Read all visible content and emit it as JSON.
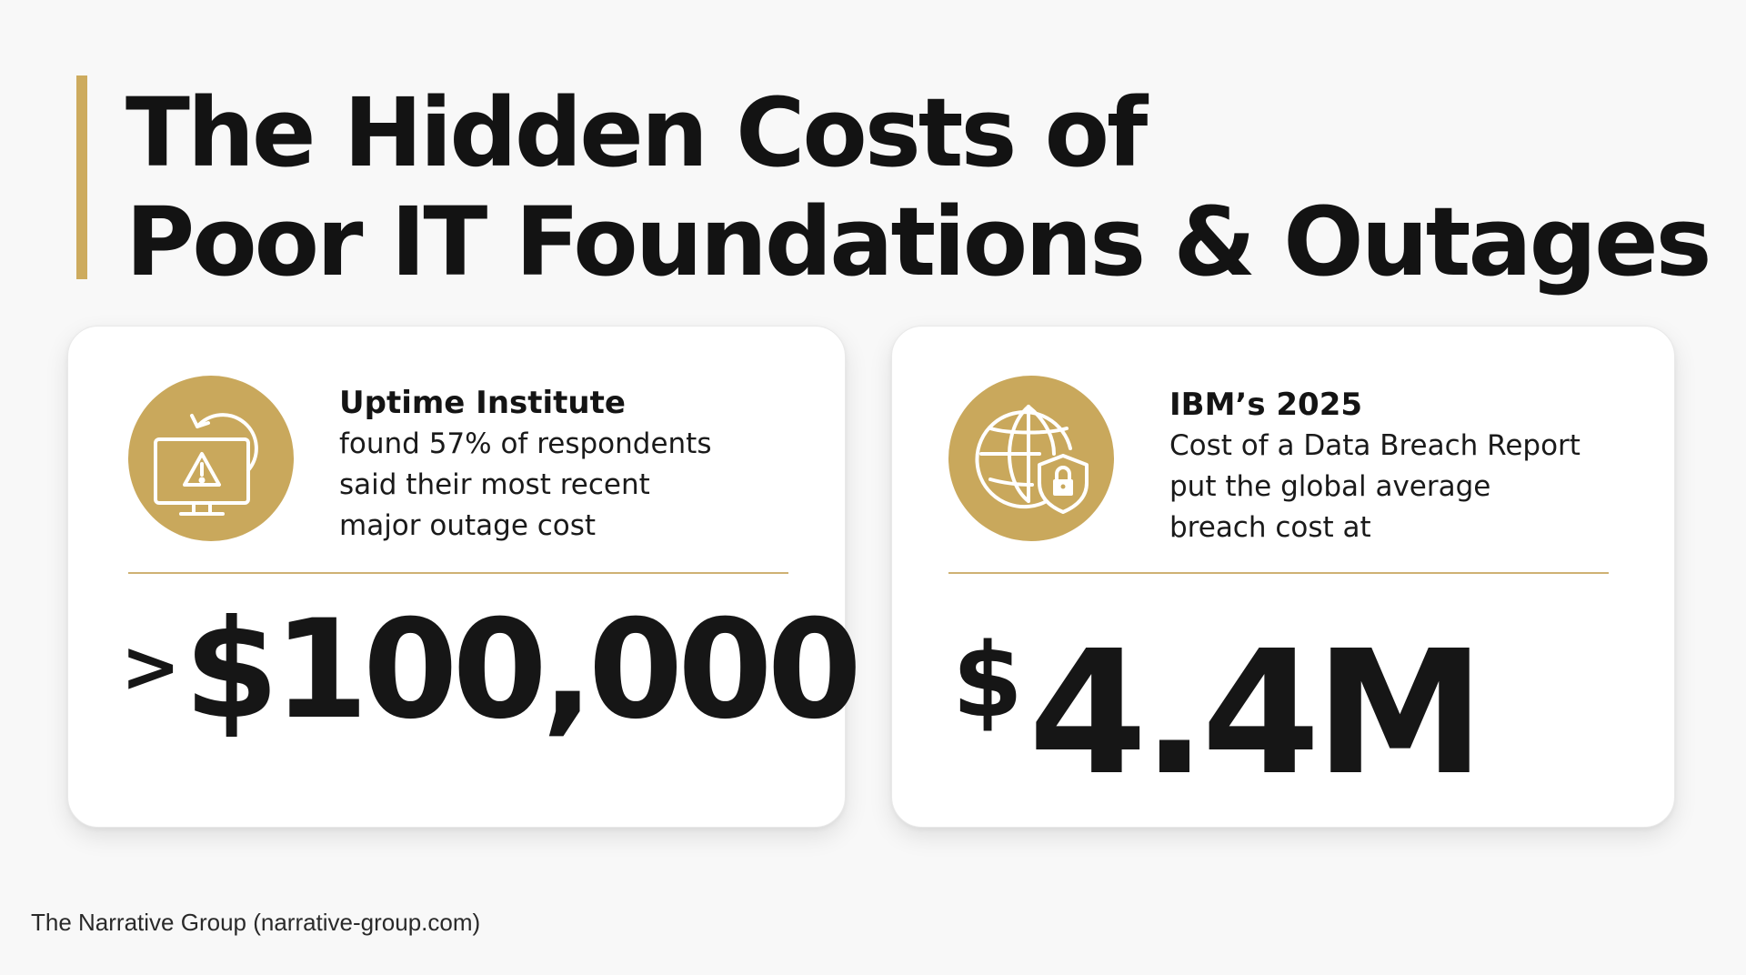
{
  "title": {
    "line1": "The Hidden Costs of",
    "line2": "Poor IT Foundations & Outages"
  },
  "colors": {
    "accent": "#c9a85c",
    "text": "#141414",
    "background": "#f8f8f8",
    "card": "#ffffff"
  },
  "cards": [
    {
      "icon": "monitor-warning-refresh-icon",
      "heading": "Uptime Institute",
      "body": "found 57% of respondents\nsaid their most recent\nmajor outage cost",
      "stat_prefix": ">",
      "stat_value": "$100,000"
    },
    {
      "icon": "globe-shield-lock-icon",
      "heading": "IBM’s 2025",
      "body": "Cost of a Data Breach Report\nput the global average\nbreach cost at",
      "stat_prefix": "$",
      "stat_value": "4.4M"
    }
  ],
  "footer": "The Narrative Group (narrative-group.com)"
}
